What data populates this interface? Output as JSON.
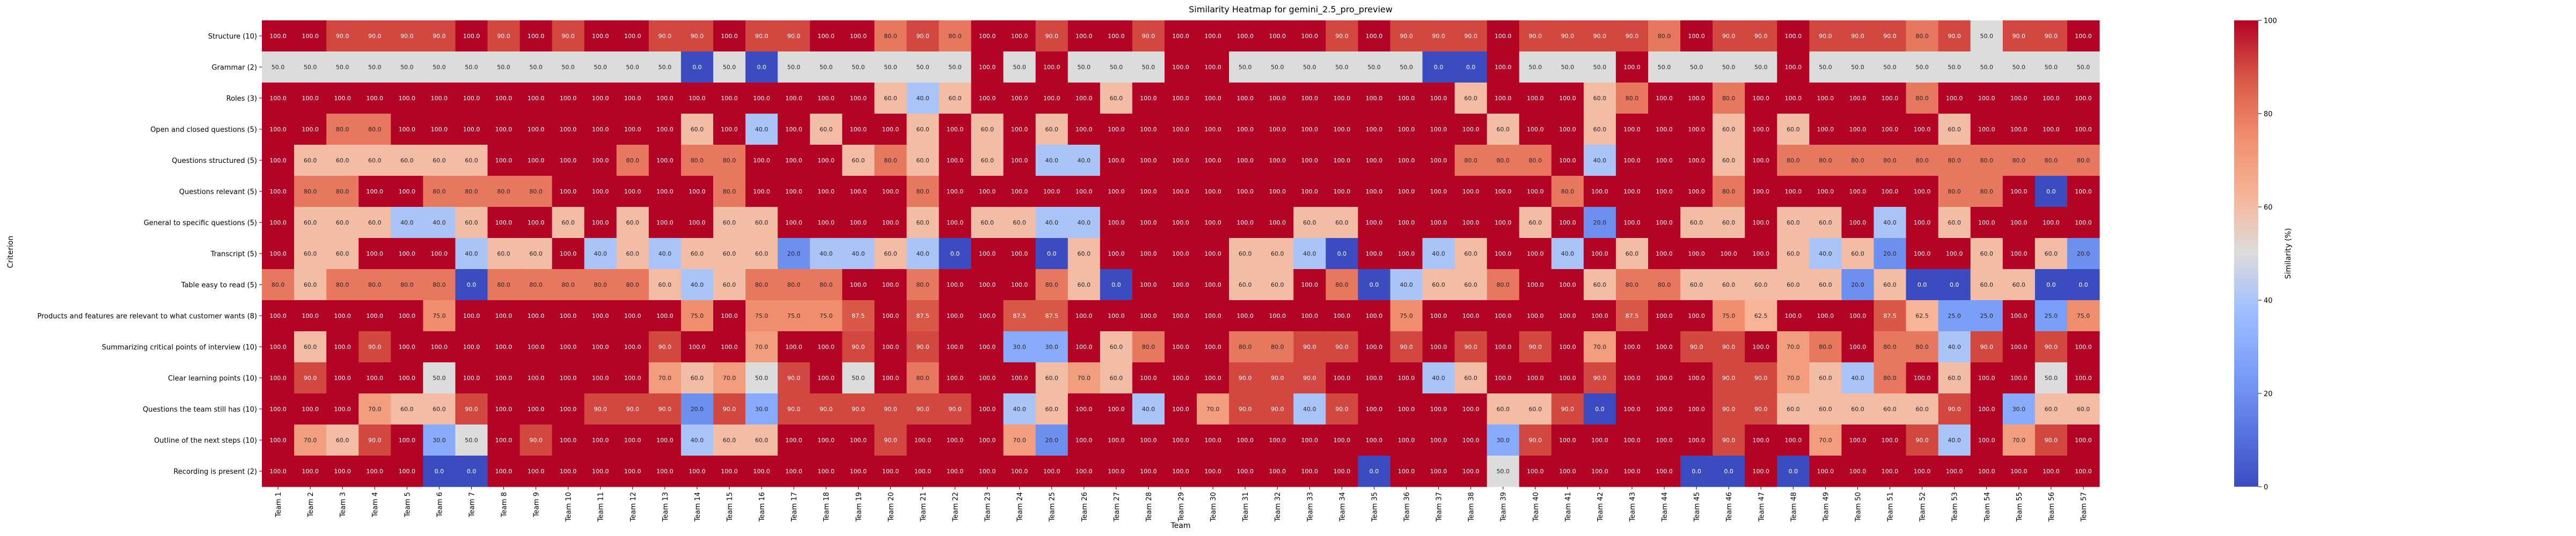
{
  "chart_data": {
    "type": "heatmap",
    "title": "Similarity Heatmap for gemini_2.5_pro_preview",
    "xlabel": "Team",
    "ylabel": "Criterion",
    "colorbar": {
      "label": "Similarity (%)",
      "min": 0,
      "max": 100,
      "ticks": [
        "0",
        "20",
        "40",
        "60",
        "80",
        "100"
      ]
    },
    "colormap": "coolwarm",
    "x_categories": [
      "Team 1",
      "Team 2",
      "Team 3",
      "Team 4",
      "Team 5",
      "Team 6",
      "Team 7",
      "Team 8",
      "Team 9",
      "Team 10",
      "Team 11",
      "Team 12",
      "Team 13",
      "Team 14",
      "Team 15",
      "Team 16",
      "Team 17",
      "Team 18",
      "Team 19",
      "Team 20",
      "Team 21",
      "Team 22",
      "Team 23",
      "Team 24",
      "Team 25",
      "Team 26",
      "Team 27",
      "Team 28",
      "Team 29",
      "Team 30",
      "Team 31",
      "Team 32",
      "Team 33",
      "Team 34",
      "Team 35",
      "Team 36",
      "Team 37",
      "Team 38",
      "Team 39",
      "Team 40",
      "Team 41",
      "Team 42",
      "Team 43",
      "Team 44",
      "Team 45",
      "Team 46",
      "Team 47",
      "Team 48",
      "Team 49",
      "Team 50",
      "Team 51",
      "Team 52",
      "Team 53",
      "Team 54",
      "Team 55",
      "Team 56",
      "Team 57"
    ],
    "y_categories": [
      "Structure (10)",
      "Grammar (2)",
      "Roles (3)",
      "Open and closed questions (5)",
      "Questions structured (5)",
      "Questions relevant (5)",
      "General to specific questions (5)",
      "Transcript (5)",
      "Table easy to read (5)",
      "Products and features are relevant to what customer wants (8)",
      "Summarizing critical points of interview (10)",
      "Clear learning points (10)",
      "Questions the team still has (10)",
      "Outline of the next steps (10)",
      "Recording is present (2)"
    ],
    "values": [
      [
        100,
        100,
        90,
        90,
        90,
        90,
        100,
        90,
        100,
        90,
        100,
        100,
        90,
        90,
        100,
        90,
        90,
        100,
        100,
        80,
        90,
        80,
        100,
        100,
        90,
        100,
        100,
        90,
        100,
        100,
        100,
        100,
        100,
        90,
        100,
        90,
        90,
        90,
        100,
        90,
        90,
        90,
        90,
        80,
        100,
        90,
        90,
        100,
        90,
        90,
        90,
        80,
        90,
        50,
        90,
        90,
        100
      ],
      [
        50,
        50,
        50,
        50,
        50,
        50,
        50,
        50,
        50,
        50,
        50,
        50,
        50,
        0,
        50,
        0,
        50,
        50,
        50,
        50,
        50,
        50,
        100,
        50,
        100,
        50,
        50,
        50,
        100,
        100,
        50,
        50,
        50,
        50,
        50,
        50,
        0,
        0,
        100,
        50,
        50,
        50,
        100,
        50,
        50,
        50,
        50,
        100,
        50,
        50,
        50,
        50,
        50,
        50,
        50,
        50,
        50
      ],
      [
        100,
        100,
        100,
        100,
        100,
        100,
        100,
        100,
        100,
        100,
        100,
        100,
        100,
        100,
        100,
        100,
        100,
        100,
        100,
        60,
        40,
        60,
        100,
        100,
        100,
        100,
        60,
        100,
        100,
        100,
        100,
        100,
        100,
        100,
        100,
        100,
        100,
        60,
        100,
        100,
        100,
        60,
        80,
        100,
        100,
        80,
        100,
        100,
        100,
        100,
        100,
        80,
        100,
        100,
        100,
        100,
        100
      ],
      [
        100,
        100,
        80,
        80,
        100,
        100,
        100,
        100,
        100,
        100,
        100,
        100,
        100,
        60,
        100,
        40,
        100,
        60,
        100,
        100,
        60,
        100,
        60,
        100,
        60,
        100,
        100,
        100,
        100,
        100,
        100,
        100,
        100,
        100,
        100,
        100,
        100,
        100,
        60,
        100,
        100,
        60,
        100,
        100,
        100,
        60,
        100,
        60,
        100,
        100,
        100,
        100,
        60,
        100,
        100,
        100,
        100
      ],
      [
        100,
        60,
        60,
        60,
        60,
        60,
        60,
        100,
        100,
        100,
        100,
        80,
        100,
        80,
        80,
        100,
        100,
        100,
        60,
        80,
        60,
        100,
        60,
        100,
        40,
        40,
        100,
        100,
        100,
        100,
        100,
        100,
        100,
        100,
        100,
        100,
        100,
        80,
        80,
        80,
        100,
        40,
        100,
        100,
        100,
        60,
        100,
        80,
        80,
        80,
        80,
        80,
        80,
        80,
        80,
        80,
        80
      ],
      [
        100,
        80,
        80,
        100,
        100,
        80,
        80,
        80,
        80,
        100,
        100,
        100,
        100,
        100,
        80,
        100,
        100,
        100,
        100,
        100,
        80,
        100,
        100,
        100,
        100,
        100,
        100,
        100,
        100,
        100,
        100,
        100,
        100,
        100,
        100,
        100,
        100,
        100,
        100,
        100,
        80,
        100,
        100,
        100,
        100,
        80,
        100,
        100,
        100,
        100,
        100,
        100,
        80,
        80,
        100,
        0,
        100
      ],
      [
        100,
        60,
        60,
        60,
        40,
        40,
        60,
        100,
        100,
        60,
        100,
        60,
        100,
        100,
        60,
        60,
        100,
        100,
        100,
        100,
        60,
        100,
        60,
        60,
        40,
        40,
        100,
        100,
        100,
        100,
        100,
        100,
        60,
        60,
        100,
        100,
        100,
        100,
        100,
        60,
        100,
        20,
        100,
        100,
        60,
        60,
        100,
        60,
        60,
        100,
        40,
        100,
        60,
        100,
        100,
        100,
        100
      ],
      [
        100,
        60,
        60,
        100,
        100,
        100,
        40,
        60,
        60,
        100,
        40,
        60,
        40,
        60,
        60,
        60,
        20,
        40,
        40,
        60,
        40,
        0,
        100,
        100,
        0,
        60,
        100,
        100,
        100,
        100,
        60,
        60,
        40,
        0,
        100,
        100,
        40,
        60,
        100,
        100,
        40,
        100,
        60,
        100,
        100,
        100,
        100,
        60,
        40,
        60,
        20,
        100,
        100,
        60,
        100,
        60,
        20
      ],
      [
        80,
        60,
        80,
        80,
        80,
        80,
        0,
        80,
        80,
        80,
        80,
        80,
        60,
        40,
        60,
        80,
        80,
        80,
        100,
        100,
        80,
        100,
        100,
        100,
        80,
        60,
        0,
        100,
        100,
        100,
        60,
        60,
        100,
        80,
        0,
        40,
        60,
        60,
        80,
        100,
        100,
        60,
        80,
        80,
        60,
        60,
        60,
        60,
        60,
        20,
        60,
        0,
        0,
        60,
        60,
        0,
        0
      ],
      [
        100,
        100,
        100,
        100,
        100,
        75,
        100,
        100,
        100,
        100,
        100,
        100,
        100,
        75,
        100,
        75,
        75,
        75,
        87.5,
        100,
        87.5,
        100,
        100,
        87.5,
        87.5,
        100,
        100,
        100,
        100,
        100,
        100,
        100,
        100,
        100,
        100,
        75,
        100,
        100,
        100,
        100,
        100,
        100,
        87.5,
        100,
        100,
        75,
        62.5,
        100,
        100,
        100,
        87.5,
        62.5,
        25,
        25,
        100,
        25,
        75
      ],
      [
        100,
        60,
        100,
        90,
        100,
        100,
        100,
        100,
        100,
        100,
        100,
        100,
        90,
        100,
        100,
        70,
        100,
        100,
        90,
        100,
        90,
        100,
        100,
        30,
        30,
        100,
        60,
        80,
        100,
        100,
        80,
        80,
        90,
        90,
        100,
        90,
        100,
        90,
        100,
        90,
        100,
        70,
        100,
        100,
        90,
        90,
        100,
        70,
        80,
        100,
        80,
        80,
        40,
        90,
        100,
        90,
        100
      ],
      [
        100,
        90,
        100,
        100,
        100,
        50,
        100,
        100,
        100,
        100,
        100,
        100,
        70,
        60,
        70,
        50,
        90,
        100,
        50,
        100,
        80,
        100,
        100,
        100,
        60,
        70,
        60,
        100,
        100,
        100,
        90,
        90,
        90,
        100,
        100,
        100,
        40,
        60,
        100,
        100,
        100,
        90,
        100,
        100,
        100,
        90,
        90,
        70,
        60,
        40,
        80,
        100,
        60,
        100,
        100,
        50,
        100
      ],
      [
        100,
        100,
        100,
        70,
        60,
        60,
        90,
        100,
        100,
        100,
        90,
        90,
        90,
        20,
        90,
        30,
        90,
        90,
        90,
        90,
        90,
        90,
        100,
        40,
        60,
        100,
        100,
        40,
        100,
        70,
        90,
        90,
        40,
        90,
        100,
        100,
        100,
        100,
        60,
        60,
        90,
        0,
        100,
        100,
        100,
        90,
        90,
        60,
        60,
        60,
        60,
        60,
        90,
        100,
        30,
        60,
        60
      ],
      [
        100,
        70,
        60,
        90,
        100,
        30,
        50,
        100,
        90,
        100,
        100,
        100,
        100,
        40,
        60,
        60,
        100,
        100,
        100,
        90,
        100,
        100,
        100,
        70,
        20,
        100,
        100,
        100,
        100,
        100,
        100,
        100,
        100,
        100,
        100,
        100,
        100,
        100,
        30,
        90,
        100,
        100,
        100,
        100,
        100,
        90,
        100,
        100,
        70,
        100,
        100,
        90,
        40,
        100,
        70,
        90,
        100
      ],
      [
        100,
        100,
        100,
        100,
        100,
        0,
        0,
        100,
        100,
        100,
        100,
        100,
        100,
        100,
        100,
        100,
        100,
        100,
        100,
        100,
        100,
        100,
        100,
        100,
        100,
        100,
        100,
        100,
        100,
        100,
        100,
        100,
        100,
        100,
        0,
        100,
        100,
        100,
        50,
        100,
        100,
        100,
        100,
        100,
        0,
        0,
        100,
        0,
        100,
        100,
        100,
        100,
        100,
        100,
        100,
        100,
        100
      ]
    ]
  }
}
